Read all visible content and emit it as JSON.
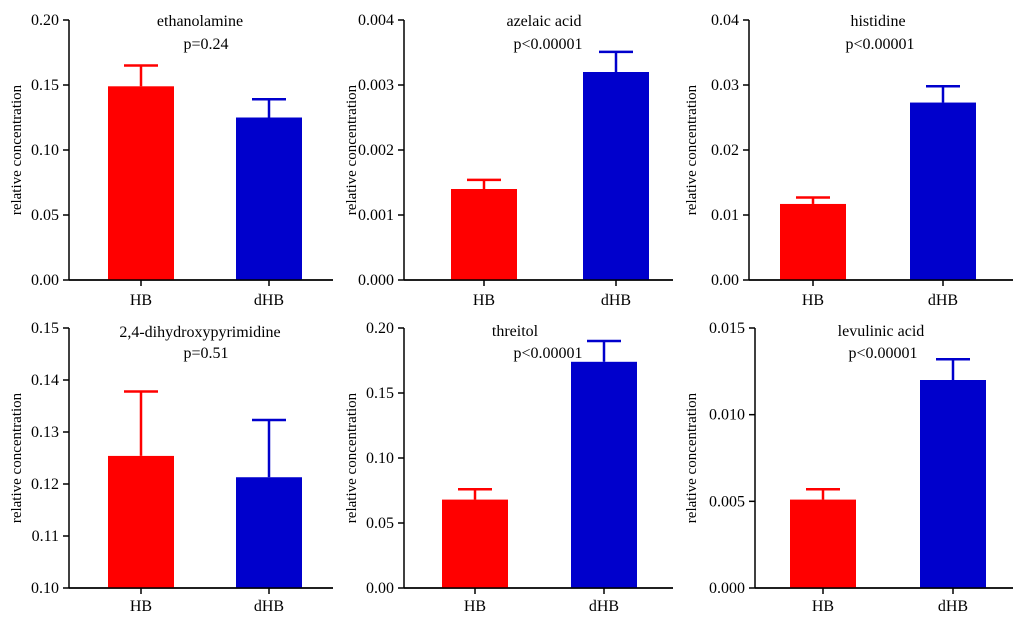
{
  "chart_data": [
    {
      "type": "bar",
      "title": "ethanolamine",
      "annotation": "p=0.24",
      "ylabel": "relative concentration",
      "categories": [
        "HB",
        "dHB"
      ],
      "values": [
        0.149,
        0.125
      ],
      "errors": [
        0.016,
        0.014
      ],
      "colors": [
        "#ff0000",
        "#0000cc"
      ],
      "ylim": [
        0,
        0.2
      ],
      "yticks": [
        "0.00",
        "0.05",
        "0.10",
        "0.15",
        "0.20"
      ]
    },
    {
      "type": "bar",
      "title": "azelaic acid",
      "annotation": "p<0.00001",
      "ylabel": "relative concentration",
      "categories": [
        "HB",
        "dHB"
      ],
      "values": [
        0.0014,
        0.0032
      ],
      "errors": [
        0.00014,
        0.00031
      ],
      "colors": [
        "#ff0000",
        "#0000cc"
      ],
      "ylim": [
        0,
        0.004
      ],
      "yticks": [
        "0.000",
        "0.001",
        "0.002",
        "0.003",
        "0.004"
      ]
    },
    {
      "type": "bar",
      "title": "histidine",
      "annotation": "p<0.00001",
      "ylabel": "relative concentration",
      "categories": [
        "HB",
        "dHB"
      ],
      "values": [
        0.0117,
        0.0273
      ],
      "errors": [
        0.001,
        0.0025
      ],
      "colors": [
        "#ff0000",
        "#0000cc"
      ],
      "ylim": [
        0,
        0.04
      ],
      "yticks": [
        "0.00",
        "0.01",
        "0.02",
        "0.03",
        "0.04"
      ]
    },
    {
      "type": "bar",
      "title": "2,4-dihydroxypyrimidine",
      "annotation": "p=0.51",
      "ylabel": "relative concentration",
      "categories": [
        "HB",
        "dHB"
      ],
      "values": [
        0.1254,
        0.1213
      ],
      "errors": [
        0.0124,
        0.011
      ],
      "colors": [
        "#ff0000",
        "#0000cc"
      ],
      "ylim": [
        0.1,
        0.15
      ],
      "yticks": [
        "0.10",
        "0.11",
        "0.12",
        "0.13",
        "0.14",
        "0.15"
      ]
    },
    {
      "type": "bar",
      "title": "threitol",
      "annotation": "p<0.00001",
      "ylabel": "relative concentration",
      "categories": [
        "HB",
        "dHB"
      ],
      "values": [
        0.068,
        0.174
      ],
      "errors": [
        0.008,
        0.016
      ],
      "colors": [
        "#ff0000",
        "#0000cc"
      ],
      "ylim": [
        0,
        0.2
      ],
      "yticks": [
        "0.00",
        "0.05",
        "0.10",
        "0.15",
        "0.20"
      ]
    },
    {
      "type": "bar",
      "title": "levulinic acid",
      "annotation": "p<0.00001",
      "ylabel": "relative concentration",
      "categories": [
        "HB",
        "dHB"
      ],
      "values": [
        0.0051,
        0.012
      ],
      "errors": [
        0.0006,
        0.0012
      ],
      "colors": [
        "#ff0000",
        "#0000cc"
      ],
      "ylim": [
        0,
        0.015
      ],
      "yticks": [
        "0.000",
        "0.005",
        "0.010",
        "0.015"
      ]
    }
  ]
}
